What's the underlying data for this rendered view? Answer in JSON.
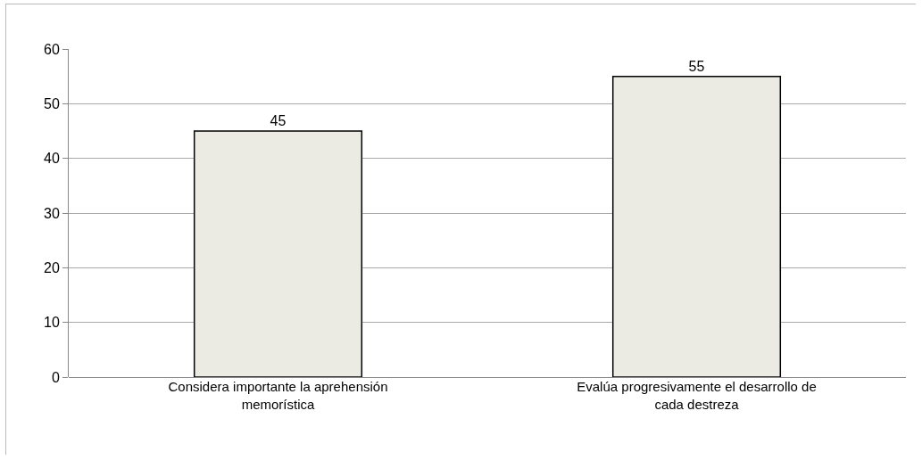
{
  "chart_data": {
    "type": "bar",
    "categories": [
      "Considera importante la aprehensión memorística",
      "Evalúa progresivamente el desarrollo de cada destreza"
    ],
    "values": [
      45,
      55
    ],
    "color": "#ebebe4",
    "ylim": [
      0,
      60
    ],
    "yticks": [
      0,
      10,
      20,
      30,
      40,
      50,
      60
    ],
    "grid": "y",
    "data_labels": true,
    "legend": false
  }
}
